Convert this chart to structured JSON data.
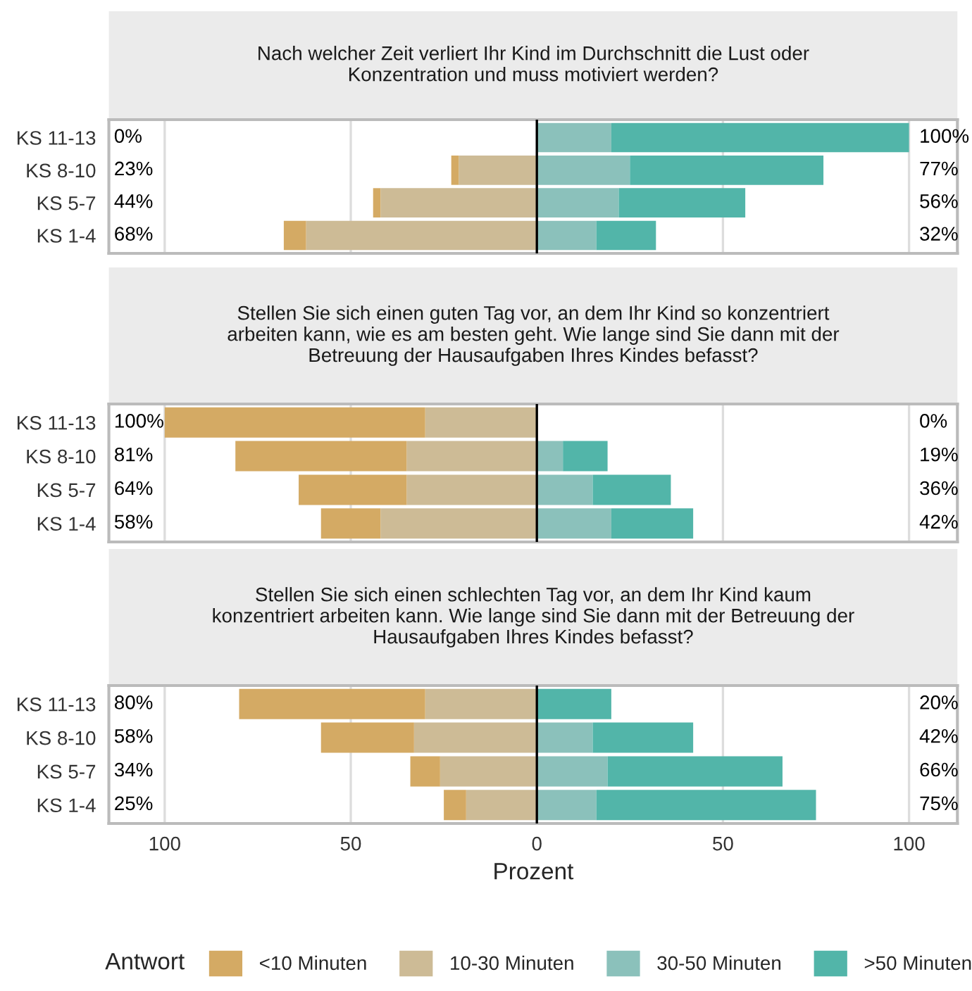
{
  "chart_data": [
    {
      "type": "bar",
      "orientation": "horizontal",
      "stacked": true,
      "title": "Nach welcher Zeit verliert Ihr Kind im Durchschnitt die Lust oder Konzentration und muss motiviert werden?",
      "legend_title": "Antwort",
      "legend": "bottom",
      "categories": [
        "KS 11-13",
        "KS 8-10",
        "KS 5-7",
        "KS 1-4"
      ],
      "series": [
        {
          "name": "10-30 Minuten",
          "color": "#cdbb96",
          "values": [
            0,
            -21,
            -42,
            -62
          ]
        },
        {
          "name": "<10 Minuten",
          "color": "#d4aa64",
          "values": [
            0,
            -2,
            -2,
            -6
          ]
        },
        {
          "name": "30-50 Minuten",
          "color": "#8bc1bb",
          "values": [
            20,
            25,
            22,
            16
          ]
        },
        {
          "name": ">50 Minuten",
          "color": "#52b5a9",
          "values": [
            80,
            52,
            34,
            16
          ]
        }
      ],
      "xlim": [
        -115,
        113
      ],
      "tick_labels": "y",
      "grid": "x",
      "ref_lines": [
        {
          "axis": "x",
          "value": 0,
          "color": "#000000"
        }
      ],
      "annotations": [
        "0%",
        "23%",
        "44%",
        "68%",
        "100%",
        "77%",
        "56%",
        "32%"
      ]
    },
    {
      "type": "bar",
      "orientation": "horizontal",
      "stacked": true,
      "title": "Stellen Sie sich einen guten Tag vor, an dem Ihr Kind so konzentriert arbeiten kann, wie es am besten geht. Wie lange sind Sie dann mit der Betreuung der Hausaufgaben Ihres Kindes befasst?",
      "categories": [
        "KS 11-13",
        "KS 8-10",
        "KS 5-7",
        "KS 1-4"
      ],
      "series": [
        {
          "color": "#cdbb96",
          "values": [
            -30,
            -35,
            -35,
            -42
          ]
        },
        {
          "color": "#d4aa64",
          "values": [
            -70,
            -46,
            -29,
            -16
          ]
        },
        {
          "color": "#8bc1bb",
          "values": [
            0,
            7,
            15,
            20
          ]
        },
        {
          "color": "#52b5a9",
          "values": [
            0,
            12,
            21,
            22
          ]
        }
      ],
      "xlim": [
        -115,
        113
      ],
      "tick_labels": "y",
      "grid": "x",
      "ref_lines": [
        {
          "axis": "x",
          "value": 0,
          "color": "#000000"
        }
      ],
      "annotations": [
        "100%",
        "81%",
        "64%",
        "58%",
        "0%",
        "19%",
        "36%",
        "42%"
      ]
    },
    {
      "type": "bar",
      "orientation": "horizontal",
      "stacked": true,
      "title": "Stellen Sie sich einen schlechten Tag vor, an dem Ihr Kind kaum konzentriert arbeiten kann. Wie lange sind Sie dann mit der Betreuung der Hausaufgaben Ihres Kindes befasst?",
      "xlabel": "Prozent",
      "categories": [
        "KS 11-13",
        "KS 8-10",
        "KS 5-7",
        "KS 1-4"
      ],
      "series": [
        {
          "color": "#cdbb96",
          "values": [
            -30,
            -33,
            -26,
            -19
          ]
        },
        {
          "color": "#d4aa64",
          "values": [
            -50,
            -25,
            -8,
            -6
          ]
        },
        {
          "color": "#8bc1bb",
          "values": [
            0,
            15,
            19,
            16
          ]
        },
        {
          "color": "#52b5a9",
          "values": [
            20,
            27,
            47,
            59
          ]
        }
      ],
      "xlim": [
        -115,
        113
      ],
      "xticks": [
        {
          "value": -100,
          "label": "100"
        },
        {
          "value": -50,
          "label": "50"
        },
        0,
        50,
        100
      ],
      "grid": "x",
      "ref_lines": [
        {
          "axis": "x",
          "value": 0,
          "color": "#000000"
        }
      ],
      "annotations": [
        "80%",
        "58%",
        "34%",
        "25%",
        "20%",
        "42%",
        "66%",
        "75%"
      ]
    }
  ]
}
